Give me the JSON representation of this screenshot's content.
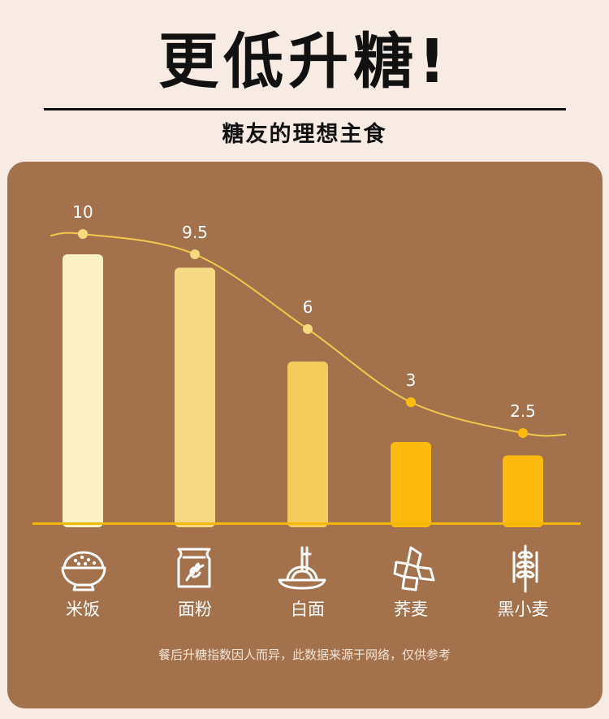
{
  "header": {
    "title": "更低升糖!",
    "subtitle": "糖友的理想主食"
  },
  "footnote": "餐后升糖指数因人而异，此数据来源于网络，仅供参考",
  "colors": {
    "background": "#f7ebe4",
    "panel": "#a4714d",
    "line": "#f3c84c",
    "axis": "#f2b900"
  },
  "chart_data": {
    "type": "bar",
    "categories": [
      "米饭",
      "面粉",
      "白面",
      "荞麦",
      "黑小麦"
    ],
    "values": [
      10,
      9.5,
      6,
      3,
      2.5
    ],
    "value_labels": [
      "10",
      "9.5",
      "6",
      "3",
      "2.5"
    ],
    "bar_colors": [
      "#fcf0c6",
      "#f6d985",
      "#f5cb5b",
      "#fdbb0f",
      "#fdbb0f"
    ],
    "icons": [
      "rice-bowl-icon",
      "flour-bag-icon",
      "noodles-icon",
      "buckwheat-icon",
      "wheat-icon"
    ],
    "trend_line": true,
    "ylim": [
      0,
      10
    ],
    "title": "",
    "xlabel": "",
    "ylabel": ""
  }
}
